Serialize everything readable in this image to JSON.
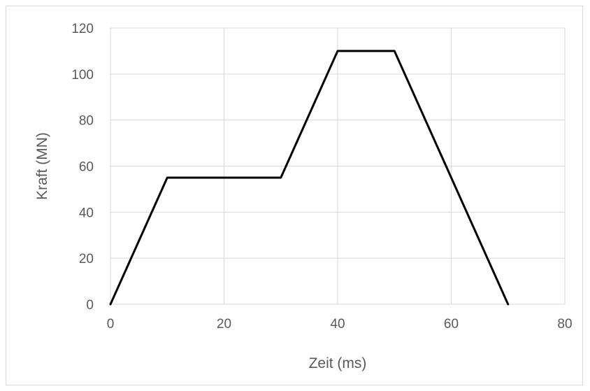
{
  "chart_data": {
    "type": "line",
    "title": "",
    "xlabel": "Zeit (ms)",
    "ylabel": "Kraft (MN)",
    "xlim": [
      0,
      80
    ],
    "ylim": [
      0,
      120
    ],
    "x_ticks": [
      0,
      20,
      40,
      60,
      80
    ],
    "y_ticks": [
      0,
      20,
      40,
      60,
      80,
      100,
      120
    ],
    "x_tick_labels": [
      "0",
      "20",
      "40",
      "60",
      "80"
    ],
    "y_tick_labels": [
      "0",
      "20",
      "40",
      "60",
      "80",
      "100",
      "120"
    ],
    "grid": true,
    "legend": "none",
    "series": [
      {
        "color": "#000000",
        "x": [
          0,
          10,
          30,
          40,
          50,
          70
        ],
        "y": [
          0,
          55,
          55,
          110,
          110,
          0
        ]
      }
    ]
  }
}
